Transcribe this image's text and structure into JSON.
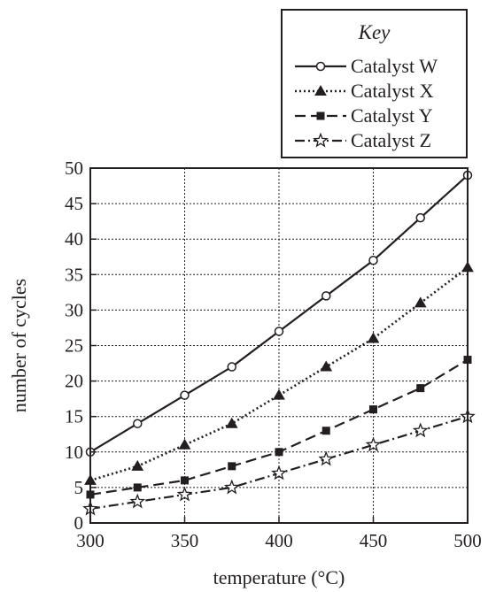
{
  "chart_data": {
    "type": "line",
    "xlabel": "temperature (°C)",
    "ylabel": "number of cycles",
    "xlim": [
      300,
      500
    ],
    "ylim": [
      0,
      50
    ],
    "x_ticks": [
      300,
      350,
      400,
      450,
      500
    ],
    "y_ticks": [
      0,
      5,
      10,
      15,
      20,
      25,
      30,
      35,
      40,
      45,
      50
    ],
    "grid": true,
    "legend": {
      "title": "Key",
      "placement": "top-right"
    },
    "x": [
      300,
      325,
      350,
      375,
      400,
      425,
      450,
      475,
      500
    ],
    "series": [
      {
        "name": "Catalyst W",
        "values": [
          10,
          14,
          18,
          22,
          27,
          32,
          37,
          43,
          49
        ],
        "line_style": "solid",
        "marker": "open-circle",
        "color": "#231f20"
      },
      {
        "name": "Catalyst X",
        "values": [
          6,
          8,
          11,
          14,
          18,
          22,
          26,
          31,
          36
        ],
        "line_style": "dotted",
        "marker": "filled-triangle",
        "color": "#231f20"
      },
      {
        "name": "Catalyst Y",
        "values": [
          4,
          5,
          6,
          8,
          10,
          13,
          16,
          19,
          23
        ],
        "line_style": "dashed",
        "marker": "filled-square",
        "color": "#231f20"
      },
      {
        "name": "Catalyst Z",
        "values": [
          2,
          3,
          4,
          5,
          7,
          9,
          11,
          13,
          15
        ],
        "line_style": "dash-dot",
        "marker": "open-star",
        "color": "#231f20"
      }
    ]
  }
}
